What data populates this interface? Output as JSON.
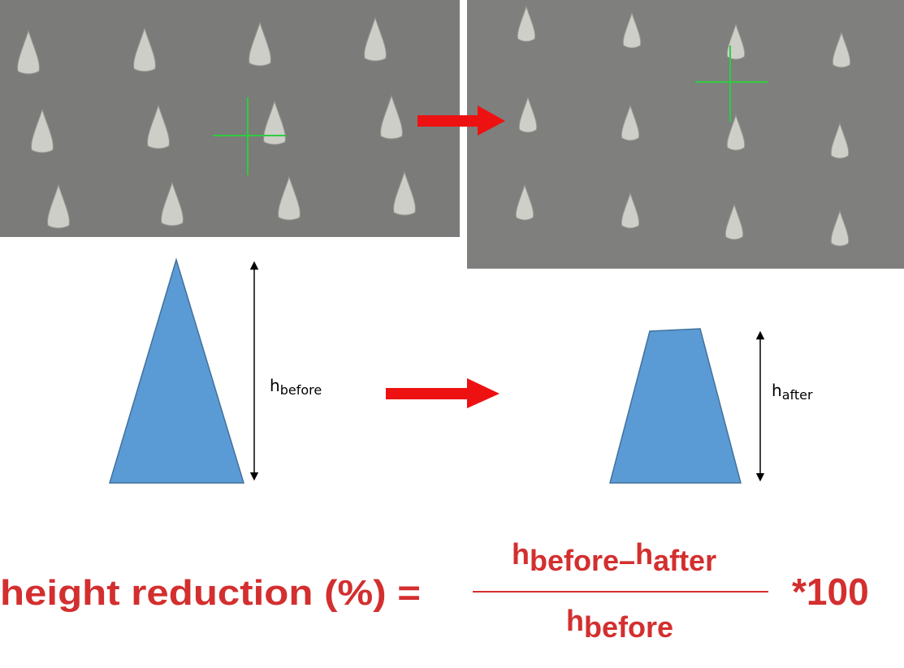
{
  "diagram": {
    "before_label": {
      "base": "h",
      "sub": "before"
    },
    "after_label": {
      "base": "h",
      "sub": "after"
    }
  },
  "formula": {
    "lhs": "height reduction (%) =",
    "numerator": {
      "term1": {
        "base": "h",
        "sub": "before"
      },
      "operator": "–",
      "term2": {
        "base": "h",
        "sub": "after"
      }
    },
    "denominator": {
      "base": "h",
      "sub": "before"
    },
    "multiplier": "*100"
  }
}
